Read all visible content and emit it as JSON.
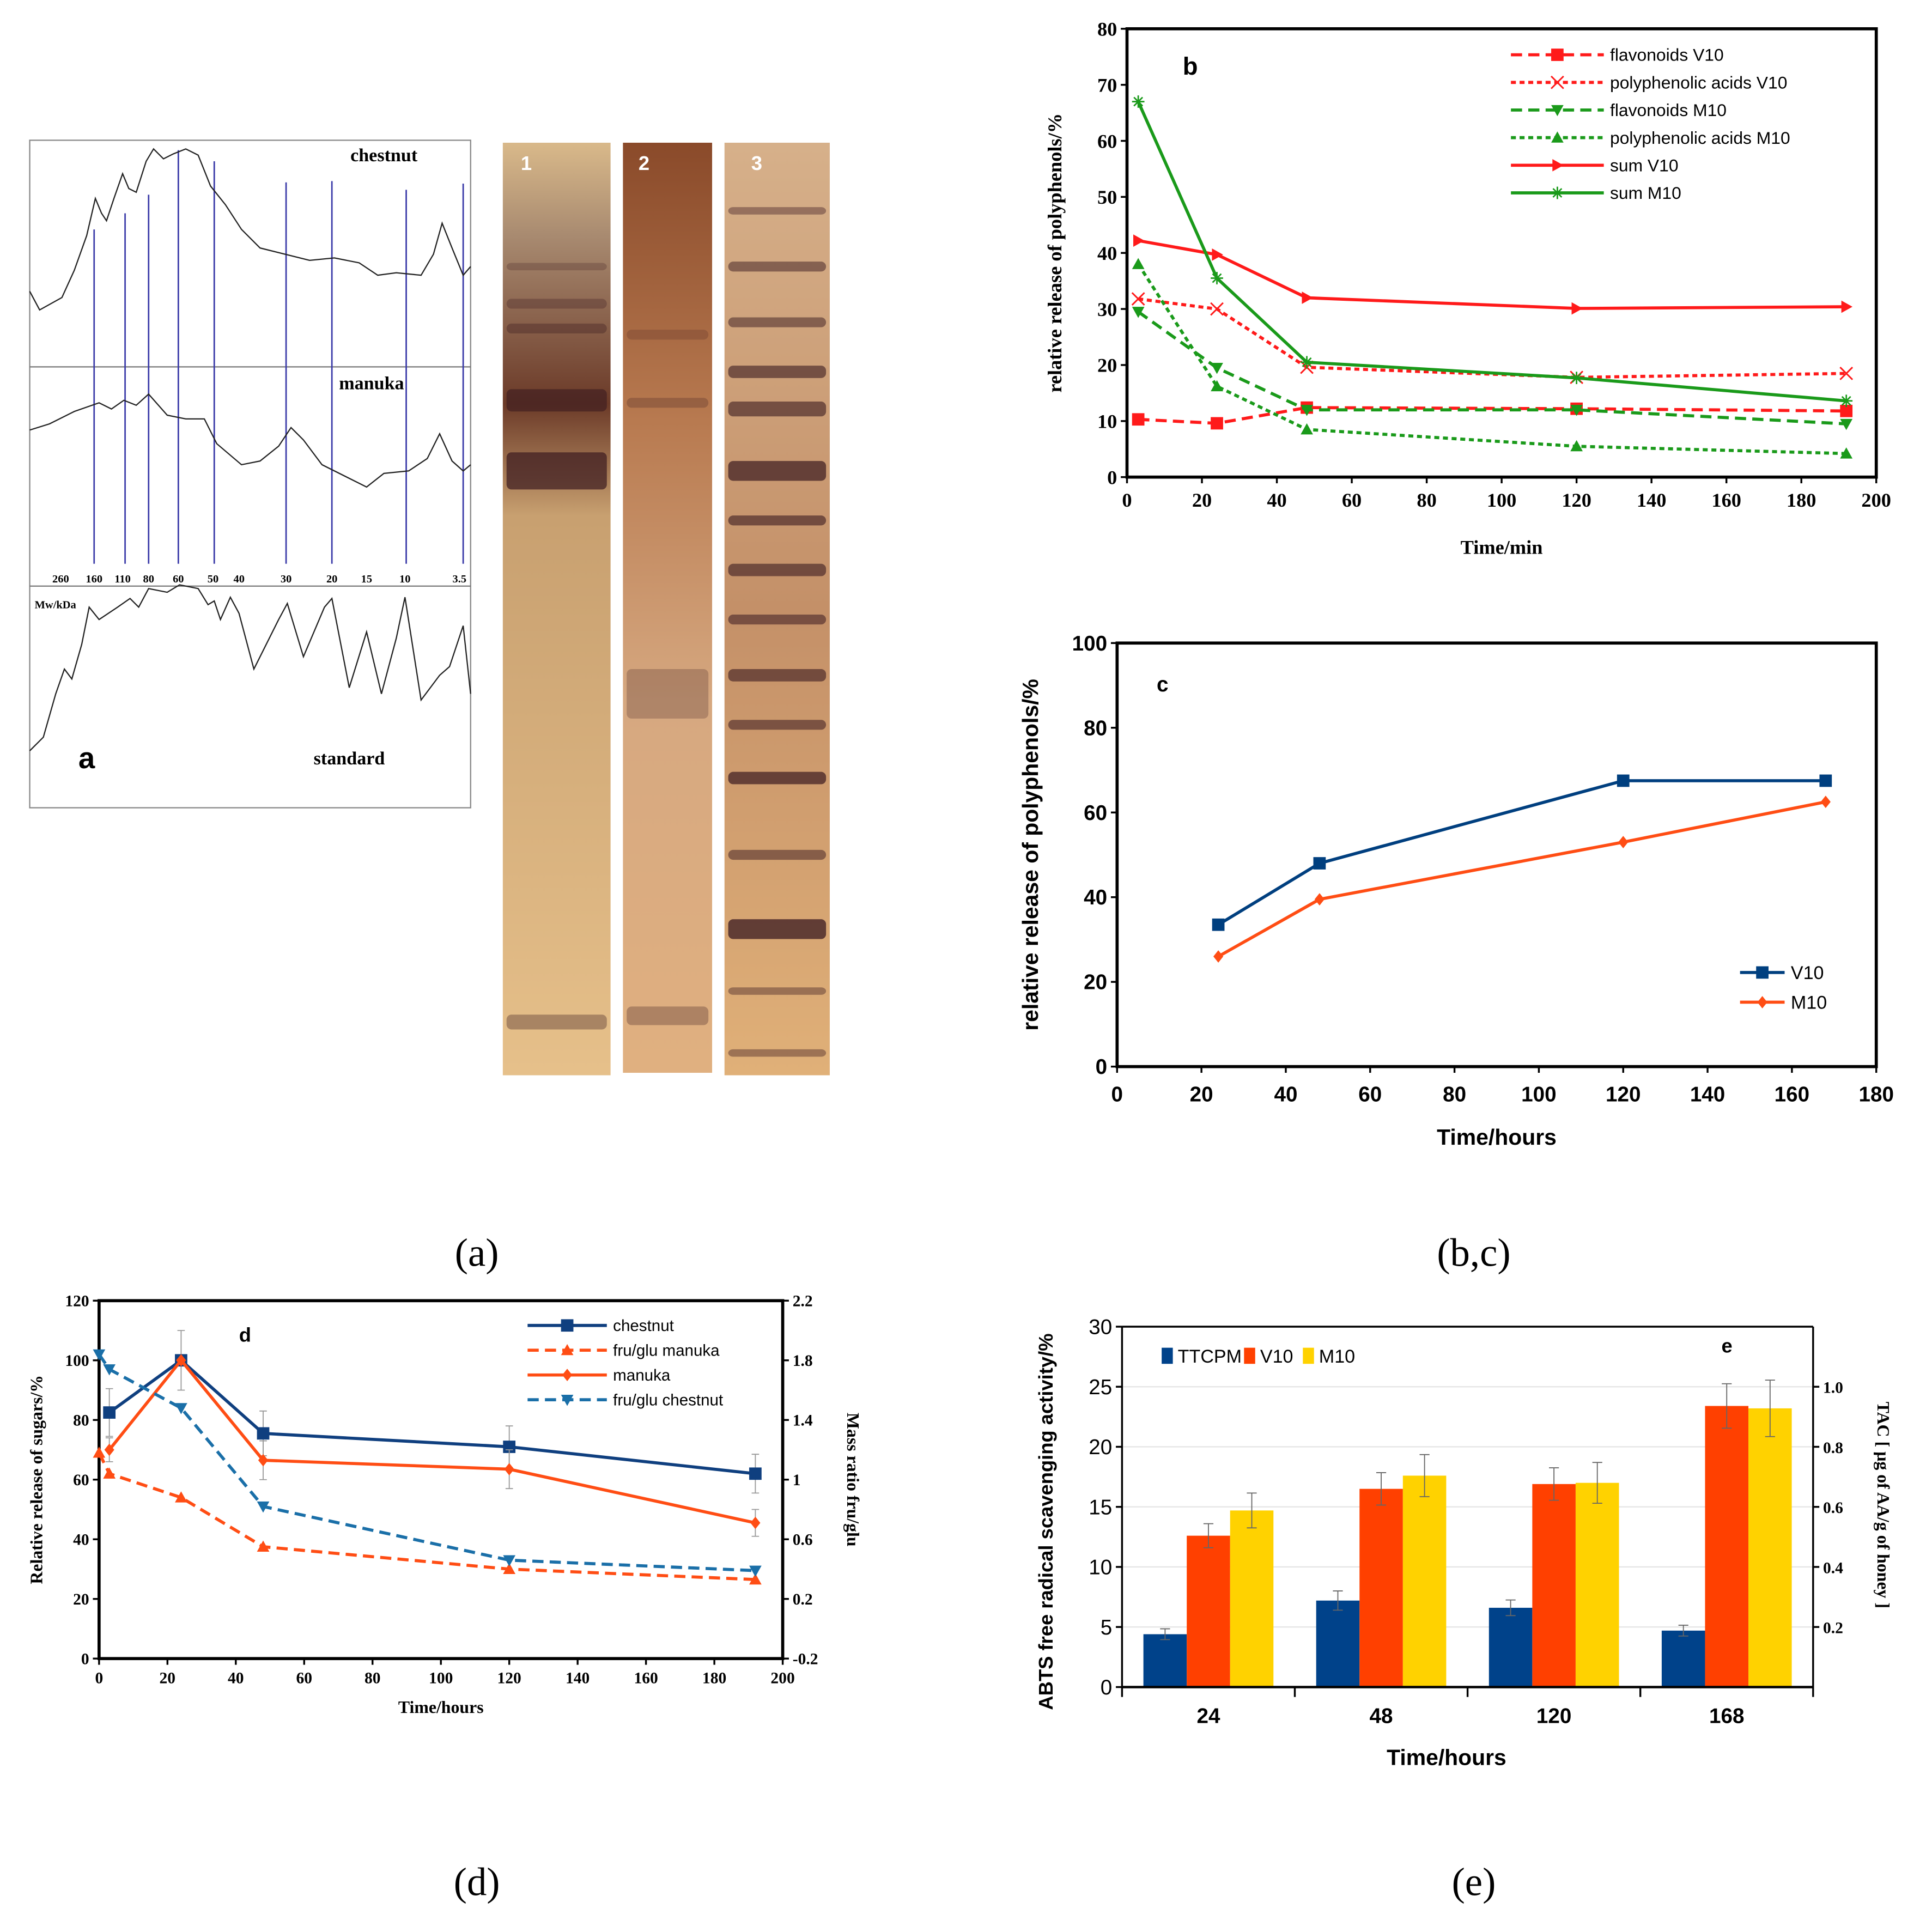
{
  "captions": {
    "a": "(a)",
    "bc": "(b,c)",
    "d": "(d)",
    "e": "(e)"
  },
  "panel_a": {
    "letter": "a",
    "trace_labels": [
      "chestnut",
      "manuka",
      "standard"
    ],
    "mw_unit": "Mw/kDa",
    "mw_markers": [
      "260",
      "160",
      "110",
      "80",
      "60",
      "50",
      "40",
      "30",
      "20",
      "15",
      "10",
      "3.5"
    ],
    "lane_labels": [
      "1",
      "2",
      "3"
    ],
    "colors": {
      "guide_lines": "#3a3aa8",
      "trace": "#222222"
    }
  },
  "chart_data": [
    {
      "id": "b",
      "type": "line",
      "letter": "b",
      "xlabel": "Time/min",
      "ylabel": "relative release of polyphenols/%",
      "xlim": [
        0,
        200
      ],
      "ylim": [
        0,
        80
      ],
      "xticks": [
        0,
        20,
        40,
        60,
        80,
        100,
        120,
        140,
        160,
        180,
        200
      ],
      "yticks": [
        0,
        10,
        20,
        30,
        40,
        50,
        60,
        70,
        80
      ],
      "x": [
        3,
        24,
        48,
        120,
        192
      ],
      "legend": "top-right",
      "series": [
        {
          "name": "flavonoids V10",
          "values": [
            10.3,
            9.6,
            12.4,
            12.2,
            11.8
          ],
          "color": "#ff1a1a",
          "dash": "dash",
          "marker": "square"
        },
        {
          "name": "polyphenolic acids V10",
          "values": [
            31.8,
            30.0,
            19.6,
            17.8,
            18.5
          ],
          "color": "#ff1a1a",
          "dash": "dot",
          "marker": "x"
        },
        {
          "name": "flavonoids M10",
          "values": [
            29.5,
            19.5,
            12.0,
            12.0,
            9.5
          ],
          "color": "#1a9a1a",
          "dash": "dash",
          "marker": "triangle-down"
        },
        {
          "name": "polyphenolic acids M10",
          "values": [
            38.0,
            16.2,
            8.5,
            5.5,
            4.2
          ],
          "color": "#1a9a1a",
          "dash": "dot",
          "marker": "triangle-up"
        },
        {
          "name": "sum V10",
          "values": [
            42.2,
            39.7,
            32.0,
            30.1,
            30.4
          ],
          "color": "#ff1a1a",
          "dash": "solid",
          "marker": "triangle-right"
        },
        {
          "name": "sum M10",
          "values": [
            67.0,
            35.5,
            20.5,
            17.7,
            13.6
          ],
          "color": "#1a9a1a",
          "dash": "solid",
          "marker": "star"
        }
      ]
    },
    {
      "id": "c",
      "type": "line",
      "letter": "c",
      "xlabel": "Time/hours",
      "ylabel": "relative release of polyphenols/%",
      "xlim": [
        0,
        180
      ],
      "ylim": [
        0,
        100
      ],
      "xticks": [
        0,
        20,
        40,
        60,
        80,
        100,
        120,
        140,
        160,
        180
      ],
      "yticks": [
        0,
        20,
        40,
        60,
        80,
        100
      ],
      "x": [
        24,
        48,
        120,
        168
      ],
      "legend": "bottom-right",
      "series": [
        {
          "name": "V10",
          "values": [
            33.5,
            48.0,
            67.5,
            67.5
          ],
          "color": "#003f7f",
          "dash": "solid",
          "marker": "square"
        },
        {
          "name": "M10",
          "values": [
            26.0,
            39.5,
            53.0,
            62.5
          ],
          "color": "#ff4d14",
          "dash": "solid",
          "marker": "diamond"
        }
      ]
    },
    {
      "id": "d",
      "type": "line",
      "letter": "d",
      "xlabel": "Time/hours",
      "ylabel": "Relative release of sugars/%",
      "y2label": "Mass ratio fru/glu",
      "xlim": [
        0,
        200
      ],
      "ylim": [
        0,
        120
      ],
      "y2lim": [
        -0.2,
        2.2
      ],
      "xticks": [
        0,
        20,
        40,
        60,
        80,
        100,
        120,
        140,
        160,
        180,
        200
      ],
      "yticks": [
        0,
        20,
        40,
        60,
        80,
        100,
        120
      ],
      "y2ticks": [
        "-0.2",
        "0.2",
        "0.6",
        "1",
        "1.4",
        "1.8",
        "2.2"
      ],
      "legend": "top-right",
      "series": [
        {
          "name": "chestnut",
          "axis": "left",
          "x": [
            3,
            24,
            48,
            120,
            192
          ],
          "values": [
            82.5,
            100,
            75.5,
            71,
            62
          ],
          "errors": [
            8,
            10,
            7.5,
            7,
            6.5
          ],
          "color": "#0f3f7f",
          "dash": "solid",
          "marker": "square"
        },
        {
          "name": "fru/glu manuka",
          "axis": "right",
          "x": [
            0,
            3,
            24,
            48,
            120,
            192
          ],
          "values": [
            1.18,
            1.04,
            0.88,
            0.55,
            0.4,
            0.33
          ],
          "color": "#ff4d14",
          "dash": "dash",
          "marker": "triangle-up"
        },
        {
          "name": "manuka",
          "axis": "left",
          "x": [
            3,
            24,
            48,
            120,
            192
          ],
          "values": [
            70,
            100,
            66.5,
            63.5,
            45.5
          ],
          "errors": [
            4,
            0,
            6.5,
            6.5,
            4.5
          ],
          "color": "#ff4d14",
          "dash": "solid",
          "marker": "diamond"
        },
        {
          "name": "fru/glu chestnut",
          "axis": "right",
          "x": [
            0,
            3,
            24,
            48,
            120,
            192
          ],
          "values": [
            1.84,
            1.74,
            1.48,
            0.82,
            0.46,
            0.39
          ],
          "color": "#1a6fa8",
          "dash": "dash",
          "marker": "triangle-down"
        }
      ]
    },
    {
      "id": "e",
      "type": "bar",
      "letter": "e",
      "xlabel": "Time/hours",
      "ylabel": "ABTS free radical scavenging activity/%",
      "y2label": "TAC [ µg of AA/g of honey ]",
      "ylim": [
        0,
        30
      ],
      "yticks": [
        0,
        5,
        10,
        15,
        20,
        25,
        30
      ],
      "y2ticks": [
        "0.2",
        "0.4",
        "0.6",
        "0.8",
        "1.0"
      ],
      "categories": [
        "24",
        "48",
        "120",
        "168"
      ],
      "legend": "top-left",
      "grid": true,
      "series": [
        {
          "name": "TTCPM",
          "values": [
            4.4,
            7.2,
            6.6,
            4.7
          ],
          "errors": [
            0.45,
            0.8,
            0.65,
            0.45
          ],
          "color": "#00428a"
        },
        {
          "name": "V10",
          "values": [
            12.6,
            16.5,
            16.9,
            23.4
          ],
          "errors": [
            1.0,
            1.35,
            1.35,
            1.85
          ],
          "color": "#ff4000"
        },
        {
          "name": "M10",
          "values": [
            14.7,
            17.6,
            17.0,
            23.2
          ],
          "errors": [
            1.45,
            1.75,
            1.7,
            2.35
          ],
          "color": "#ffd200"
        }
      ]
    }
  ]
}
